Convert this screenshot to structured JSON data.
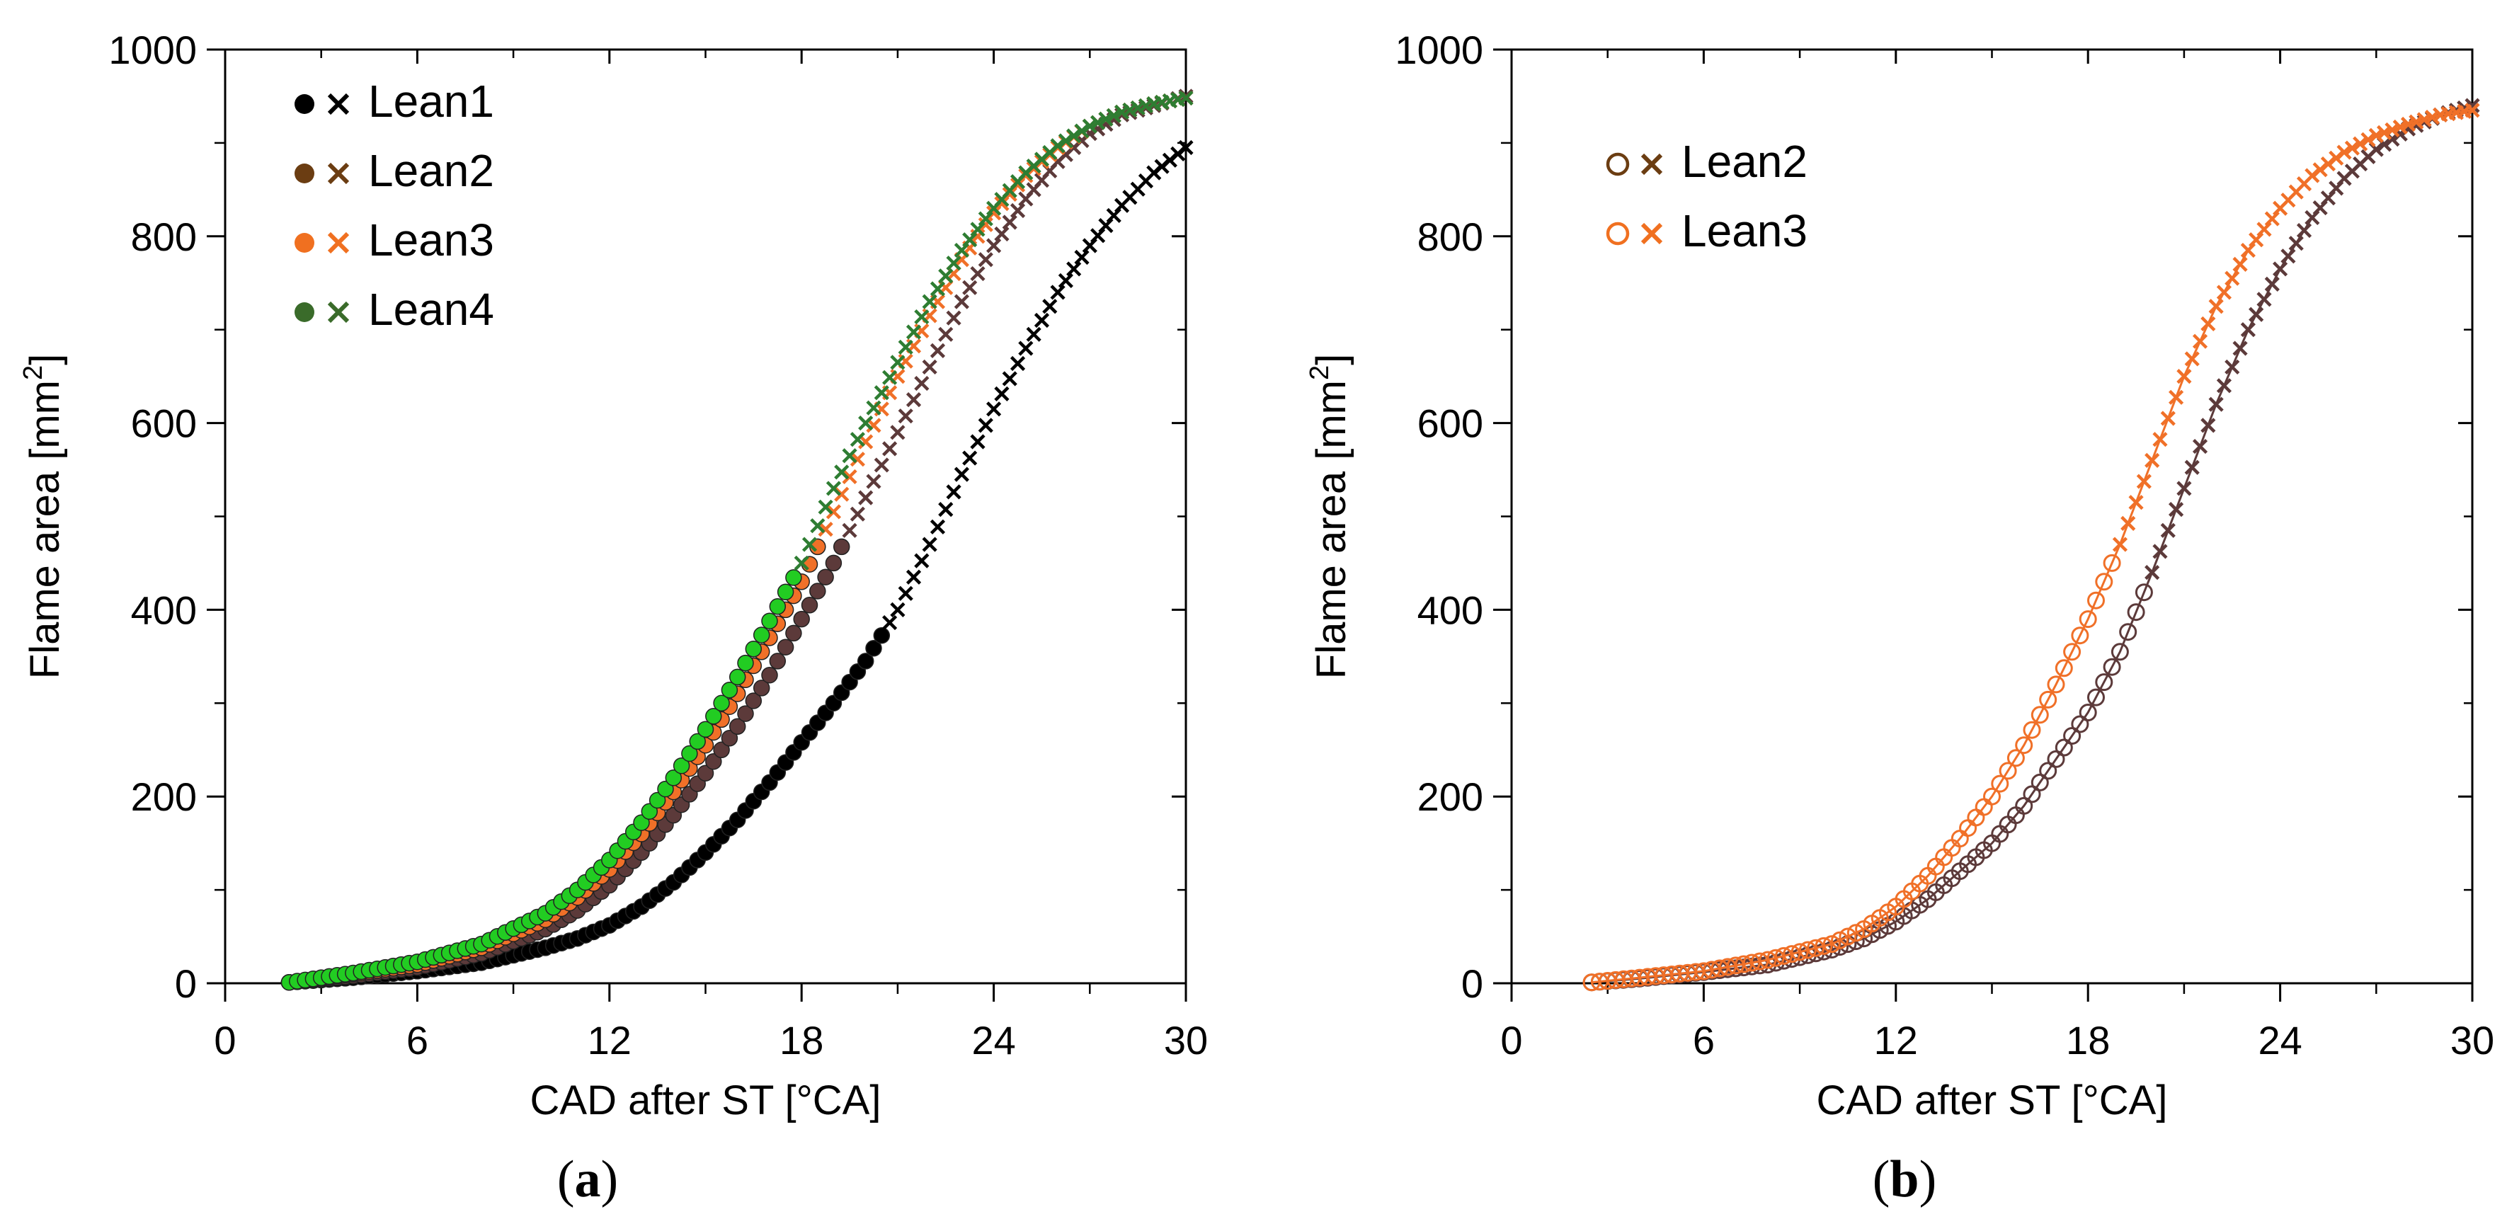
{
  "chart_data": [
    {
      "type": "scatter",
      "panel_label": "(a)",
      "panel_label_parts": [
        "(",
        "a",
        ")"
      ],
      "xlabel": "CAD after ST [°CA]",
      "ylabel_main": "Flame area [mm",
      "ylabel_sup": "2",
      "ylabel_end": "]",
      "xlim": [
        0,
        30
      ],
      "ylim": [
        0,
        1000
      ],
      "xticks": [
        0,
        6,
        12,
        18,
        24,
        30
      ],
      "yticks": [
        0,
        200,
        400,
        600,
        800,
        1000
      ],
      "xtick_labels": [
        "0",
        "6",
        "12",
        "18",
        "24",
        "30"
      ],
      "ytick_labels": [
        "0",
        "200",
        "400",
        "600",
        "800",
        "1000"
      ],
      "legend_position": "top-left",
      "series": [
        {
          "name": "Lean1",
          "color": "#000000",
          "dot_color": "#000000",
          "legend_dot": "#000000",
          "legend_cross": "#000000",
          "switch_x": 20.6,
          "start_x": 2.0,
          "curve": [
            [
              2,
              1
            ],
            [
              4,
              6
            ],
            [
              6,
              13
            ],
            [
              8,
              22
            ],
            [
              10,
              38
            ],
            [
              11,
              48
            ],
            [
              12,
              62
            ],
            [
              13,
              82
            ],
            [
              14,
              108
            ],
            [
              15,
              140
            ],
            [
              16,
              175
            ],
            [
              17,
              215
            ],
            [
              18,
              258
            ],
            [
              19,
              300
            ],
            [
              20,
              345
            ],
            [
              21,
              400
            ],
            [
              22,
              470
            ],
            [
              23,
              545
            ],
            [
              24,
              615
            ],
            [
              25,
              680
            ],
            [
              26,
              740
            ],
            [
              27,
              790
            ],
            [
              28,
              833
            ],
            [
              29,
              868
            ],
            [
              30,
              895
            ]
          ]
        },
        {
          "name": "Lean2",
          "color": "#5c3a3a",
          "dot_color": "#5c3a3a",
          "legend_dot": "#6b3d12",
          "legend_cross": "#6b3d12",
          "switch_x": 19.4,
          "start_x": 2.0,
          "curve": [
            [
              2,
              1
            ],
            [
              4,
              8
            ],
            [
              6,
              17
            ],
            [
              8,
              32
            ],
            [
              10,
              58
            ],
            [
              11,
              78
            ],
            [
              12,
              105
            ],
            [
              13,
              140
            ],
            [
              14,
              180
            ],
            [
              15,
              225
            ],
            [
              16,
              275
            ],
            [
              17,
              330
            ],
            [
              18,
              390
            ],
            [
              19,
              450
            ],
            [
              20,
              520
            ],
            [
              21,
              590
            ],
            [
              22,
              660
            ],
            [
              23,
              730
            ],
            [
              24,
              790
            ],
            [
              25,
              840
            ],
            [
              26,
              880
            ],
            [
              27,
              910
            ],
            [
              28,
              930
            ],
            [
              29,
              940
            ],
            [
              30,
              950
            ]
          ]
        },
        {
          "name": "Lean3",
          "color": "#f07028",
          "dot_color": "#f07028",
          "legend_dot": "#f07020",
          "legend_cross": "#f07020",
          "switch_x": 18.6,
          "start_x": 2.0,
          "curve": [
            [
              2,
              1
            ],
            [
              4,
              10
            ],
            [
              6,
              20
            ],
            [
              8,
              38
            ],
            [
              10,
              68
            ],
            [
              11,
              92
            ],
            [
              12,
              122
            ],
            [
              13,
              160
            ],
            [
              14,
              205
            ],
            [
              15,
              255
            ],
            [
              16,
              310
            ],
            [
              17,
              370
            ],
            [
              18,
              430
            ],
            [
              19,
              505
            ],
            [
              20,
              580
            ],
            [
              21,
              650
            ],
            [
              22,
              715
            ],
            [
              23,
              775
            ],
            [
              24,
              825
            ],
            [
              25,
              865
            ],
            [
              26,
              895
            ],
            [
              27,
              918
            ],
            [
              28,
              933
            ],
            [
              29,
              942
            ],
            [
              30,
              948
            ]
          ]
        },
        {
          "name": "Lean4",
          "color": "#2e7d32",
          "dot_color": "#22cc22",
          "legend_dot": "#3a6b2a",
          "legend_cross": "#3a6b2a",
          "switch_x": 18.0,
          "start_x": 2.0,
          "curve": [
            [
              2,
              1
            ],
            [
              4,
              11
            ],
            [
              6,
              23
            ],
            [
              8,
              42
            ],
            [
              10,
              75
            ],
            [
              11,
              100
            ],
            [
              12,
              132
            ],
            [
              13,
              172
            ],
            [
              14,
              220
            ],
            [
              15,
              272
            ],
            [
              16,
              328
            ],
            [
              17,
              388
            ],
            [
              18,
              450
            ],
            [
              19,
              530
            ],
            [
              20,
              600
            ],
            [
              21,
              665
            ],
            [
              22,
              730
            ],
            [
              23,
              785
            ],
            [
              24,
              830
            ],
            [
              25,
              868
            ],
            [
              26,
              897
            ],
            [
              27,
              918
            ],
            [
              28,
              933
            ],
            [
              29,
              942
            ],
            [
              30,
              948
            ]
          ]
        }
      ]
    },
    {
      "type": "scatter",
      "panel_label": "(b)",
      "panel_label_parts": [
        "(",
        "b",
        ")"
      ],
      "xlabel": "CAD after ST [°CA]",
      "ylabel_main": "Flame area [mm",
      "ylabel_sup": "2",
      "ylabel_end": "]",
      "xlim": [
        0,
        30
      ],
      "ylim": [
        0,
        1000
      ],
      "xticks": [
        0,
        6,
        12,
        18,
        24,
        30
      ],
      "yticks": [
        0,
        200,
        400,
        600,
        800,
        1000
      ],
      "xtick_labels": [
        "0",
        "6",
        "12",
        "18",
        "24",
        "30"
      ],
      "ytick_labels": [
        "0",
        "200",
        "400",
        "600",
        "800",
        "1000"
      ],
      "legend_position": "top-left",
      "series": [
        {
          "name": "Lean2",
          "color": "#5c3a3a",
          "legend_dot": "#6b3d12",
          "legend_cross": "#6b3d12",
          "switch_x": 20.0,
          "start_x": 2.5,
          "curve": [
            [
              2.5,
              1
            ],
            [
              4,
              5
            ],
            [
              6,
              12
            ],
            [
              8,
              20
            ],
            [
              10,
              36
            ],
            [
              11,
              48
            ],
            [
              12,
              66
            ],
            [
              13,
              90
            ],
            [
              14,
              120
            ],
            [
              15,
              150
            ],
            [
              16,
              190
            ],
            [
              17,
              240
            ],
            [
              18,
              290
            ],
            [
              19,
              355
            ],
            [
              20,
              440
            ],
            [
              21,
              530
            ],
            [
              22,
              620
            ],
            [
              23,
              700
            ],
            [
              24,
              765
            ],
            [
              25,
              820
            ],
            [
              26,
              862
            ],
            [
              27,
              893
            ],
            [
              28,
              915
            ],
            [
              29,
              930
            ],
            [
              30,
              940
            ]
          ]
        },
        {
          "name": "Lean3",
          "color": "#f07028",
          "legend_dot": "#f07020",
          "legend_cross": "#f07020",
          "switch_x": 18.8,
          "start_x": 2.5,
          "curve": [
            [
              2.5,
              1
            ],
            [
              4,
              6
            ],
            [
              6,
              13
            ],
            [
              8,
              25
            ],
            [
              10,
              42
            ],
            [
              11,
              58
            ],
            [
              12,
              82
            ],
            [
              13,
              115
            ],
            [
              14,
              155
            ],
            [
              15,
              200
            ],
            [
              16,
              255
            ],
            [
              17,
              320
            ],
            [
              18,
              390
            ],
            [
              19,
              470
            ],
            [
              20,
              560
            ],
            [
              21,
              650
            ],
            [
              22,
              725
            ],
            [
              23,
              785
            ],
            [
              24,
              830
            ],
            [
              25,
              865
            ],
            [
              26,
              890
            ],
            [
              27,
              908
            ],
            [
              28,
              920
            ],
            [
              29,
              930
            ],
            [
              30,
              935
            ]
          ]
        }
      ]
    }
  ]
}
